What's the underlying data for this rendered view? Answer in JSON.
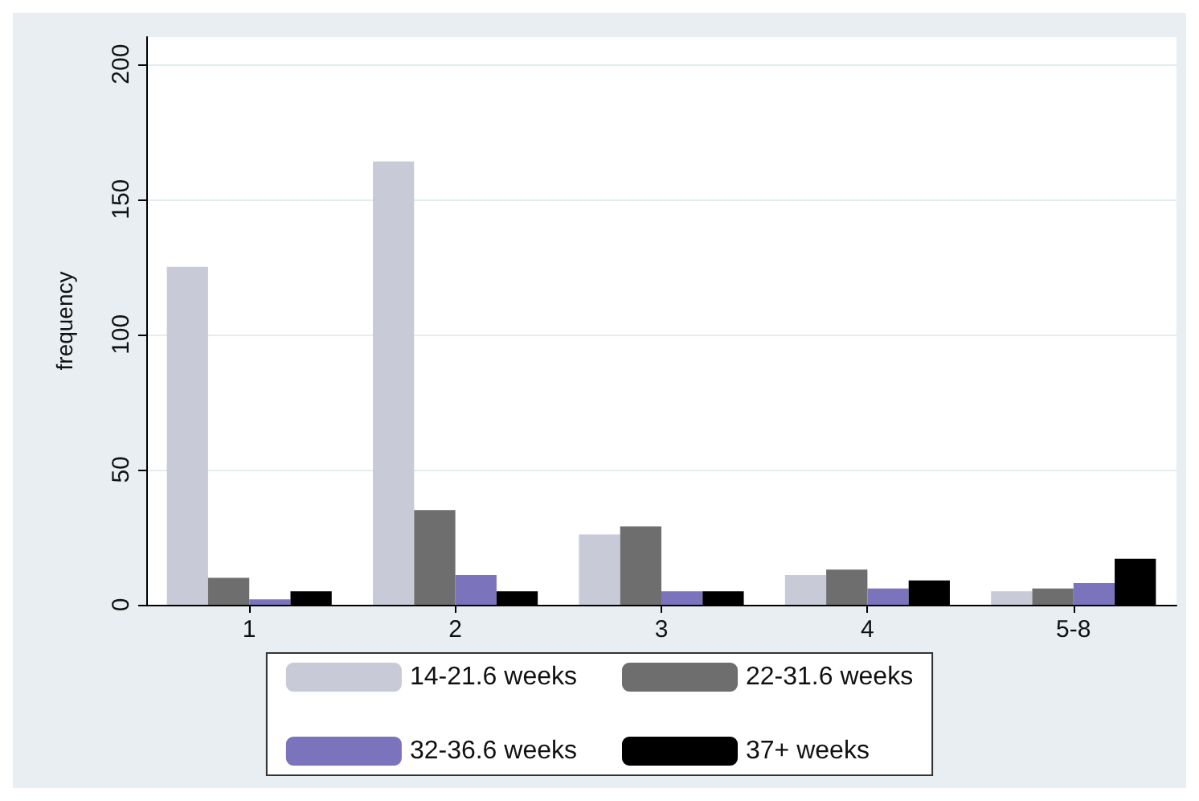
{
  "chart_data": {
    "type": "bar",
    "ylabel": "frequency",
    "categories": [
      "1",
      "2",
      "3",
      "4",
      "5-8"
    ],
    "series": [
      {
        "name": "14-21.6 weeks",
        "color": "#c8cad8",
        "values": [
          125,
          164,
          26,
          11,
          5
        ]
      },
      {
        "name": "22-31.6 weeks",
        "color": "#6e6e6e",
        "values": [
          10,
          35,
          29,
          13,
          6
        ]
      },
      {
        "name": "32-36.6 weeks",
        "color": "#7c73bd",
        "values": [
          2,
          11,
          5,
          6,
          8
        ]
      },
      {
        "name": "37+ weeks",
        "color": "#000000",
        "values": [
          5,
          5,
          5,
          9,
          17
        ]
      }
    ],
    "ylim": [
      0,
      210
    ],
    "yticks": [
      0,
      50,
      100,
      150,
      200
    ],
    "grid": "y",
    "legend": "bottom"
  }
}
